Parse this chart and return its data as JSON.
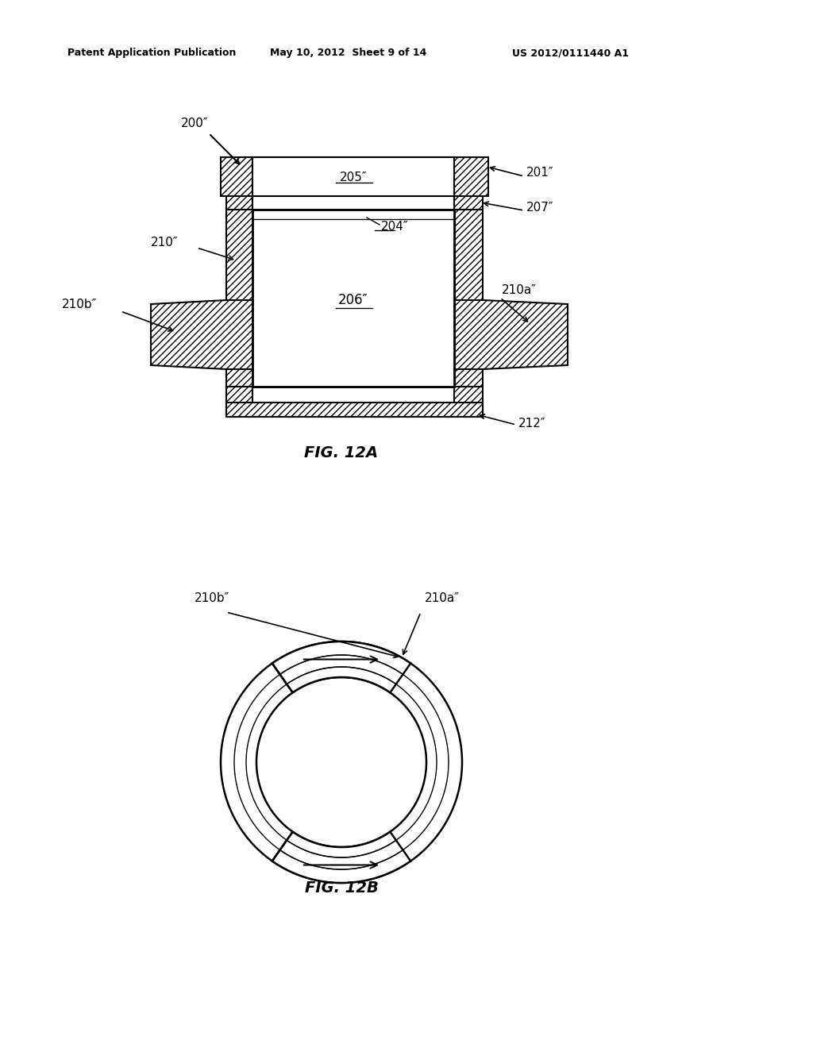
{
  "bg_color": "#ffffff",
  "header_left": "Patent Application Publication",
  "header_mid": "May 10, 2012  Sheet 9 of 14",
  "header_right": "US 2012/0111440 A1",
  "fig12a_label": "FIG. 12A",
  "fig12b_label": "FIG. 12B",
  "labels": {
    "200pp": "200″",
    "201pp": "201″",
    "204pp": "204″",
    "205pp": "205″",
    "206pp": "206″",
    "207pp": "207″",
    "210pp": "210″",
    "210app": "210a″",
    "210bpp": "210b″",
    "212pp": "212″"
  }
}
